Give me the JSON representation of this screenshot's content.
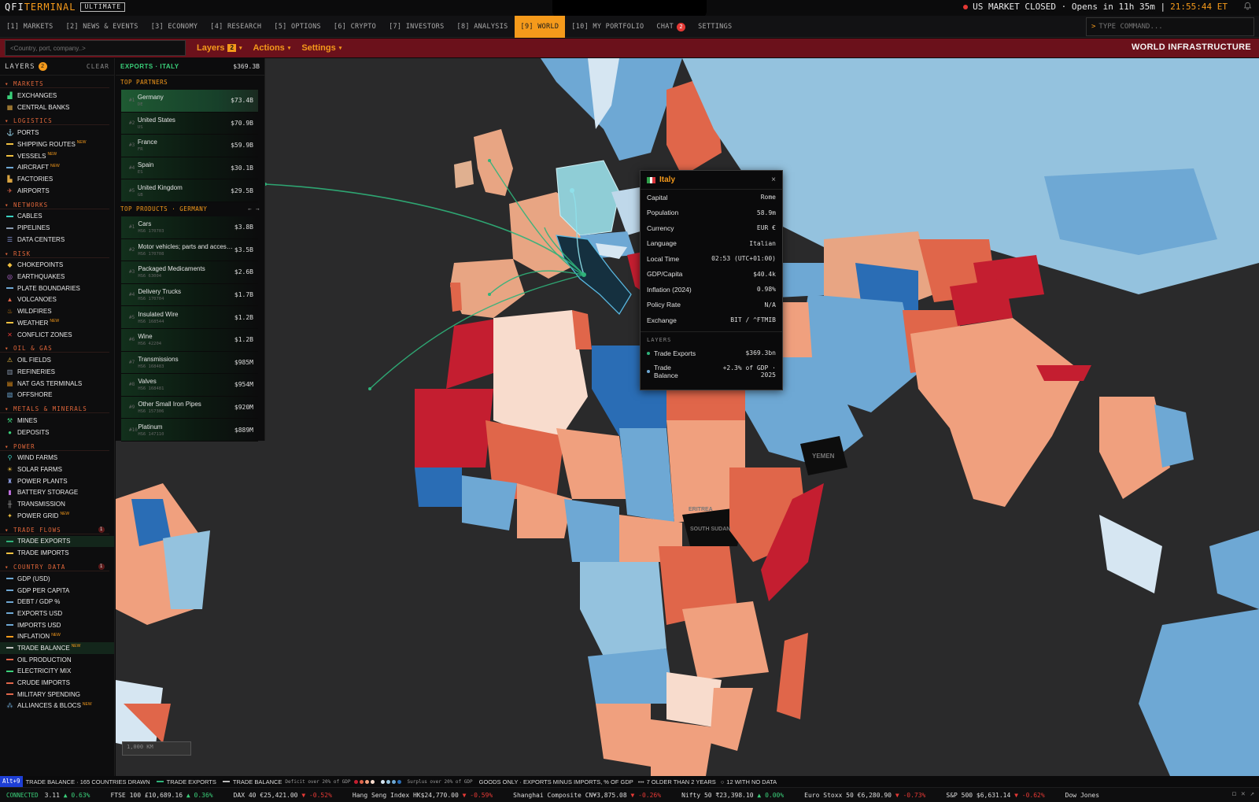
{
  "app": {
    "logo_a": "QFI",
    "logo_b": "TERMINAL",
    "edition": "ULTIMATE"
  },
  "market_status": {
    "text": "US MARKET CLOSED · Opens in 11h 35m |",
    "clock": "21:55:44 ET"
  },
  "nav": {
    "tabs": [
      {
        "label": "[1] MARKETS"
      },
      {
        "label": "[2] NEWS & EVENTS"
      },
      {
        "label": "[3] ECONOMY"
      },
      {
        "label": "[4] RESEARCH"
      },
      {
        "label": "[5] OPTIONS"
      },
      {
        "label": "[6] CRYPTO"
      },
      {
        "label": "[7] INVESTORS"
      },
      {
        "label": "[8] ANALYSIS"
      },
      {
        "label": "[9] WORLD"
      },
      {
        "label": "[10] MY PORTFOLIO"
      },
      {
        "label": "CHAT"
      },
      {
        "label": "SETTINGS"
      }
    ],
    "chat_badge": "2",
    "command_placeholder": "TYPE COMMAND..."
  },
  "subbar": {
    "search_placeholder": "<Country, port, company..>",
    "menus": {
      "layers": "Layers",
      "layers_badge": "2",
      "actions": "Actions",
      "settings": "Settings"
    },
    "title": "WORLD INFRASTRUCTURE"
  },
  "layers_panel": {
    "title": "LAYERS",
    "badge": "2",
    "clear": "CLEAR",
    "new_tag": "NEW",
    "sections": {
      "markets": {
        "title": "MARKETS",
        "items": [
          "EXCHANGES",
          "CENTRAL BANKS"
        ]
      },
      "logistics": {
        "title": "LOGISTICS",
        "items": [
          "PORTS",
          "SHIPPING ROUTES",
          "VESSELS",
          "AIRCRAFT",
          "FACTORIES",
          "AIRPORTS"
        ]
      },
      "networks": {
        "title": "NETWORKS",
        "items": [
          "CABLES",
          "PIPELINES",
          "DATA CENTERS"
        ]
      },
      "risk": {
        "title": "RISK",
        "items": [
          "CHOKEPOINTS",
          "EARTHQUAKES",
          "PLATE BOUNDARIES",
          "VOLCANOES",
          "WILDFIRES",
          "WEATHER",
          "CONFLICT ZONES"
        ]
      },
      "oil": {
        "title": "OIL & GAS",
        "items": [
          "OIL FIELDS",
          "REFINERIES",
          "NAT GAS TERMINALS",
          "OFFSHORE"
        ]
      },
      "metals": {
        "title": "METALS & MINERALS",
        "items": [
          "MINES",
          "DEPOSITS"
        ]
      },
      "power": {
        "title": "POWER",
        "items": [
          "WIND FARMS",
          "SOLAR FARMS",
          "POWER PLANTS",
          "BATTERY STORAGE",
          "TRANSMISSION",
          "POWER GRID"
        ]
      },
      "trade": {
        "title": "TRADE FLOWS",
        "count": "1",
        "items": [
          "TRADE EXPORTS",
          "TRADE IMPORTS"
        ]
      },
      "country": {
        "title": "COUNTRY DATA",
        "count": "1",
        "items": [
          "GDP (USD)",
          "GDP PER CAPITA",
          "DEBT / GDP %",
          "EXPORTS USD",
          "IMPORTS USD",
          "INFLATION",
          "TRADE BALANCE",
          "OIL PRODUCTION",
          "ELECTRICITY MIX",
          "CRUDE IMPORTS",
          "MILITARY SPENDING",
          "ALLIANCES & BLOCS"
        ]
      }
    }
  },
  "exports_panel": {
    "title": "EXPORTS · ITALY",
    "total": "$369.3B",
    "partners_title": "TOP PARTNERS",
    "partners": [
      {
        "rank": "#1",
        "name": "Germany",
        "code": "DE",
        "value": "$73.4B"
      },
      {
        "rank": "#2",
        "name": "United States",
        "code": "US",
        "value": "$70.9B"
      },
      {
        "rank": "#3",
        "name": "France",
        "code": "FR",
        "value": "$59.9B"
      },
      {
        "rank": "#4",
        "name": "Spain",
        "code": "ES",
        "value": "$30.1B"
      },
      {
        "rank": "#5",
        "name": "United Kingdom",
        "code": "GB",
        "value": "$29.5B"
      }
    ],
    "products_title": "TOP PRODUCTS · GERMANY",
    "products_nav": "← →",
    "products": [
      {
        "rank": "#1",
        "name": "Cars",
        "code": "HS6 170703",
        "value": "$3.8B"
      },
      {
        "rank": "#2",
        "name": "Motor vehicles; parts and accessor...",
        "code": "HS6 170708",
        "value": "$3.5B"
      },
      {
        "rank": "#3",
        "name": "Packaged Medicaments",
        "code": "HS6 63004",
        "value": "$2.6B"
      },
      {
        "rank": "#4",
        "name": "Delivery Trucks",
        "code": "HS6 170704",
        "value": "$1.7B"
      },
      {
        "rank": "#5",
        "name": "Insulated Wire",
        "code": "HS6 168544",
        "value": "$1.2B"
      },
      {
        "rank": "#6",
        "name": "Wine",
        "code": "HS6 42204",
        "value": "$1.2B"
      },
      {
        "rank": "#7",
        "name": "Transmissions",
        "code": "HS6 168483",
        "value": "$985M"
      },
      {
        "rank": "#8",
        "name": "Valves",
        "code": "HS6 168481",
        "value": "$954M"
      },
      {
        "rank": "#9",
        "name": "Other Small Iron Pipes",
        "code": "HS6 157306",
        "value": "$920M"
      },
      {
        "rank": "#10",
        "name": "Platinum",
        "code": "HS6 147110",
        "value": "$889M"
      }
    ]
  },
  "country_popup": {
    "name": "Italy",
    "close": "×",
    "props": [
      {
        "label": "Capital",
        "value": "Rome"
      },
      {
        "label": "Population",
        "value": "58.9m"
      },
      {
        "label": "Currency",
        "value": "EUR €"
      },
      {
        "label": "Language",
        "value": "Italian"
      },
      {
        "label": "Local Time",
        "value": "02:53 (UTC+01:00)"
      },
      {
        "label": "GDP/Capita",
        "value": "$40.4k"
      },
      {
        "label": "Inflation (2024)",
        "value": "0.98%"
      },
      {
        "label": "Policy Rate",
        "value": "N/A"
      },
      {
        "label": "Exchange",
        "value": "BIT / ^FTMIB"
      }
    ],
    "layers_title": "LAYERS",
    "layers": [
      {
        "label": "Trade Exports",
        "value": "$369.3bn"
      },
      {
        "label": "Trade Balance",
        "value": "+2.3% of GDP · 2025"
      }
    ]
  },
  "map": {
    "labels": {
      "yemen": "YEMEN",
      "south_sudan": "SOUTH SUDAN",
      "eritrea": "ERITREA"
    },
    "scale": "1,000 KM"
  },
  "legend": {
    "hotkey": "Alt+9",
    "drawn": "TRADE BALANCE · 165 COUNTRIES DRAWN",
    "exports": "TRADE EXPORTS",
    "balance": "TRADE BALANCE",
    "deficit": "Deficit over 20% of GDP",
    "surplus": "Surplus over 20% of GDP",
    "note": "GOODS ONLY · EXPORTS MINUS IMPORTS, % OF GDP",
    "older": "7 OLDER THAN 2 YEARS",
    "nodata": "12 WITH NO DATA"
  },
  "ticker": {
    "status": "CONNECTED",
    "items": [
      {
        "name": "",
        "price": "3.11",
        "arrow": "▲",
        "chg": "0.63%",
        "dir": "up"
      },
      {
        "name": "FTSE 100",
        "price": "£10,689.16",
        "arrow": "▲",
        "chg": "0.36%",
        "dir": "up"
      },
      {
        "name": "DAX 40",
        "price": "€25,421.00",
        "arrow": "▼",
        "chg": "-0.52%",
        "dir": "dn"
      },
      {
        "name": "Hang Seng Index",
        "price": "HK$24,770.00",
        "arrow": "▼",
        "chg": "-0.59%",
        "dir": "dn"
      },
      {
        "name": "Shanghai Composite",
        "price": "CN¥3,875.08",
        "arrow": "▼",
        "chg": "-0.26%",
        "dir": "dn"
      },
      {
        "name": "Nifty 50",
        "price": "₹23,398.10",
        "arrow": "▲",
        "chg": "0.00%",
        "dir": "up"
      },
      {
        "name": "Euro Stoxx 50",
        "price": "€6,280.90",
        "arrow": "▼",
        "chg": "-0.73%",
        "dir": "dn"
      },
      {
        "name": "S&P 500",
        "price": "$6,631.14",
        "arrow": "▼",
        "chg": "-0.62%",
        "dir": "dn"
      },
      {
        "name": "Dow Jones",
        "price": "",
        "arrow": "",
        "chg": "",
        "dir": "up"
      }
    ]
  },
  "colors": {
    "accent": "#f59a1b",
    "deficit_strong": "#c41e30",
    "deficit": "#e0664a",
    "deficit_light": "#f0a07e",
    "surplus_light": "#bfd8ea",
    "surplus": "#6ea8d4",
    "surplus_strong": "#2a6db5",
    "export_flow": "#2fb27a"
  }
}
